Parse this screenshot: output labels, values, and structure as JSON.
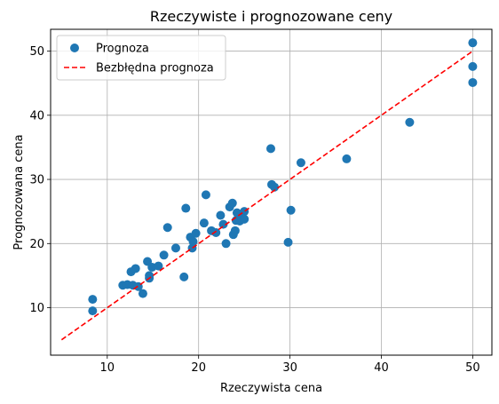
{
  "chart_data": {
    "type": "scatter",
    "title": "Rzeczywiste i prognozowane ceny",
    "xlabel": "Rzeczywista cena",
    "ylabel": "Prognozowana cena",
    "xlim": [
      3.8,
      52.1
    ],
    "ylim": [
      2.6,
      53.4
    ],
    "xticks": [
      10,
      20,
      30,
      40,
      50
    ],
    "yticks": [
      10,
      20,
      30,
      40,
      50
    ],
    "grid": true,
    "legend_position": "top-left",
    "series": [
      {
        "name": "Prognoza",
        "kind": "scatter",
        "color": "#1f77b4",
        "points": [
          [
            8.4,
            11.3
          ],
          [
            8.4,
            9.5
          ],
          [
            11.7,
            13.5
          ],
          [
            12.2,
            13.6
          ],
          [
            12.6,
            15.6
          ],
          [
            12.8,
            13.5
          ],
          [
            13.1,
            16.1
          ],
          [
            13.4,
            13.3
          ],
          [
            13.9,
            12.2
          ],
          [
            14.4,
            17.2
          ],
          [
            14.6,
            15.0
          ],
          [
            14.6,
            14.6
          ],
          [
            14.9,
            16.3
          ],
          [
            15.6,
            16.5
          ],
          [
            16.2,
            18.2
          ],
          [
            16.6,
            22.5
          ],
          [
            17.5,
            19.3
          ],
          [
            18.4,
            14.8
          ],
          [
            18.6,
            25.5
          ],
          [
            19.1,
            21.0
          ],
          [
            19.3,
            19.3
          ],
          [
            19.4,
            20.3
          ],
          [
            19.7,
            21.6
          ],
          [
            20.6,
            23.2
          ],
          [
            20.8,
            27.6
          ],
          [
            21.4,
            22.0
          ],
          [
            21.9,
            21.7
          ],
          [
            22.4,
            24.4
          ],
          [
            22.7,
            23.0
          ],
          [
            23.0,
            20.0
          ],
          [
            23.4,
            25.7
          ],
          [
            23.7,
            26.3
          ],
          [
            23.8,
            21.4
          ],
          [
            24.0,
            22.0
          ],
          [
            24.1,
            23.6
          ],
          [
            24.2,
            24.8
          ],
          [
            24.5,
            23.5
          ],
          [
            24.7,
            24.0
          ],
          [
            25.0,
            25.0
          ],
          [
            25.0,
            23.8
          ],
          [
            27.9,
            34.8
          ],
          [
            28.0,
            29.2
          ],
          [
            28.3,
            28.8
          ],
          [
            29.8,
            20.2
          ],
          [
            30.1,
            25.2
          ],
          [
            31.2,
            32.6
          ],
          [
            36.2,
            33.2
          ],
          [
            43.1,
            38.9
          ],
          [
            50.0,
            51.3
          ],
          [
            50.0,
            47.6
          ],
          [
            50.0,
            45.1
          ]
        ]
      },
      {
        "name": "Bezbłędna prognoza",
        "kind": "line",
        "style": "dashed",
        "color": "#ff0000",
        "points": [
          [
            5,
            5
          ],
          [
            50,
            50
          ]
        ]
      }
    ]
  }
}
